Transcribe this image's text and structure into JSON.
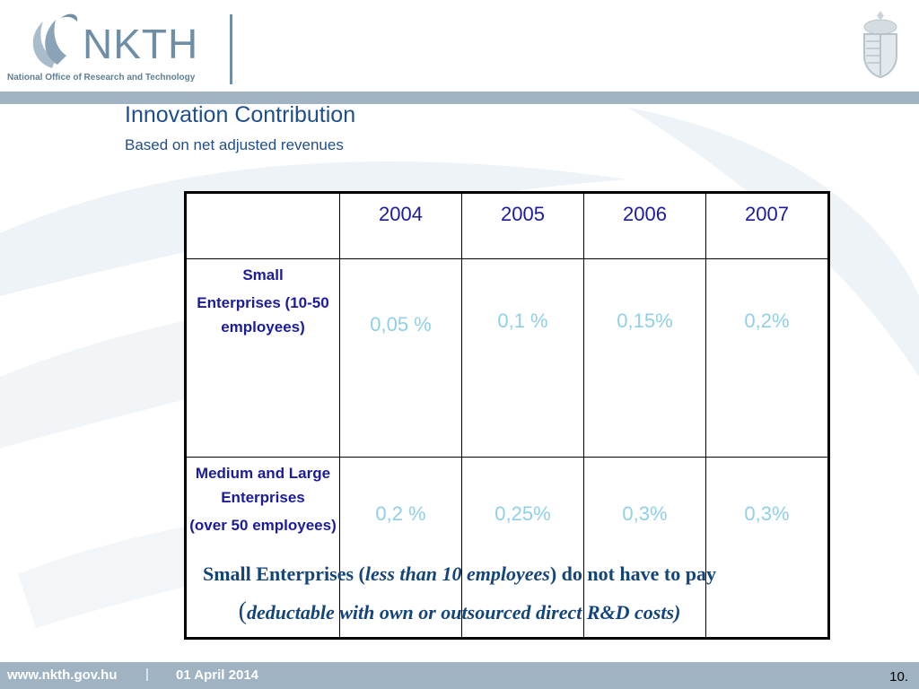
{
  "header": {
    "logo_text": "NKTH",
    "logo_subtitle": "National Office of Research and Technology",
    "crest_icon": "coat-of-arms-icon"
  },
  "slide": {
    "title": "Innovation Contribution",
    "subtitle": "Based on net adjusted revenues"
  },
  "table": {
    "columns": [
      "",
      "2004",
      "2005",
      "2006",
      "2007"
    ],
    "rows": [
      {
        "label_lines": [
          "Small",
          "Enterprises (10-50 employees)"
        ],
        "values": [
          "0,05 %",
          "0,1 %",
          "0,15%",
          "0,2%"
        ]
      },
      {
        "label_lines": [
          "Medium and Large Enterprises",
          "(over 50 employees)"
        ],
        "values": [
          "0,2 %",
          "0,25%",
          "0,3%",
          "0,3%"
        ]
      }
    ]
  },
  "note": {
    "part1": "Small Enterprises (",
    "part1_italic": "less than 10 employees",
    "part1_end": ") do not have to pay",
    "part2_open": "(",
    "part2_italic": "deductable with own or outsourced direct R&D costs)"
  },
  "footer": {
    "url": "www.nkth.gov.hu",
    "separator": "|",
    "date": "01 April 2014",
    "page": "10."
  },
  "colors": {
    "title": "#1f4e8c",
    "table_header": "#1b1b9e",
    "value_text": "#8fd0e8",
    "note": "#14457a",
    "bar": "#9fb3c3"
  }
}
